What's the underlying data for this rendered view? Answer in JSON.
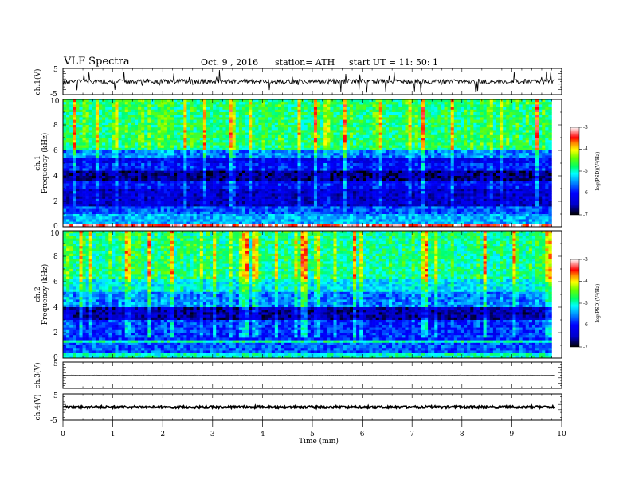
{
  "header": {
    "title": "VLF  Spectra",
    "date": "Oct. 9  , 2016",
    "station": "station= ATH",
    "start": "start  UT  =   11: 50: 1"
  },
  "chart_data": [
    {
      "type": "line",
      "name": "ch1-waveform",
      "ylabel": "ch.1(V)",
      "ylim": [
        -5,
        5
      ],
      "yticks": [
        "5",
        "-5"
      ],
      "xlim": [
        0,
        10
      ]
    },
    {
      "type": "heatmap",
      "name": "ch1-spectrogram",
      "ylabel": "ch.1\nFrequency (kHz)",
      "ylabel_channel": "ch.1",
      "ylabel_freq": "Frequency  (kHz)",
      "ylim": [
        0,
        10
      ],
      "yticks": [
        "0",
        "2",
        "4",
        "6",
        "8",
        "10"
      ],
      "xlim": [
        0,
        9.8
      ],
      "colorbar": {
        "label": "log(PSD)(V²/Hz)",
        "range": [
          -7,
          -3
        ],
        "ticks": [
          "-3",
          "-4",
          "-5",
          "-6",
          "-7"
        ]
      },
      "band_levels": [
        {
          "f": [
            0.0,
            0.3
          ],
          "level": -3.3
        },
        {
          "f": [
            0.3,
            1.0
          ],
          "level": -5.4
        },
        {
          "f": [
            1.0,
            1.6
          ],
          "level": -5.7
        },
        {
          "f": [
            1.6,
            3.0
          ],
          "level": -6.4
        },
        {
          "f": [
            3.0,
            3.6
          ],
          "level": -6.1
        },
        {
          "f": [
            3.6,
            4.4
          ],
          "level": -6.7
        },
        {
          "f": [
            4.4,
            5.0
          ],
          "level": -6.0
        },
        {
          "f": [
            5.0,
            5.4
          ],
          "level": -6.2
        },
        {
          "f": [
            5.4,
            6.0
          ],
          "level": -5.6
        },
        {
          "f": [
            6.0,
            6.3
          ],
          "level": -4.9
        },
        {
          "f": [
            6.3,
            10.0
          ],
          "level": -4.8
        }
      ]
    },
    {
      "type": "heatmap",
      "name": "ch2-spectrogram",
      "ylabel_channel": "ch.2",
      "ylabel_freq": "Frequency  (kHz)",
      "ylim": [
        0,
        10
      ],
      "yticks": [
        "0",
        "2",
        "4",
        "6",
        "8",
        "10"
      ],
      "xlim": [
        0,
        9.8
      ],
      "colorbar": {
        "label": "log(PSD)(V²/Hz)",
        "range": [
          -7,
          -3
        ],
        "ticks": [
          "-3",
          "-4",
          "-5",
          "-6",
          "-7"
        ]
      },
      "band_levels": [
        {
          "f": [
            0.0,
            0.4
          ],
          "level": -5.0
        },
        {
          "f": [
            0.4,
            1.2
          ],
          "level": -5.7
        },
        {
          "f": [
            1.2,
            1.5
          ],
          "level": -4.9
        },
        {
          "f": [
            1.5,
            3.0
          ],
          "level": -5.9
        },
        {
          "f": [
            3.0,
            4.0
          ],
          "level": -6.6
        },
        {
          "f": [
            4.0,
            5.2
          ],
          "level": -5.6
        },
        {
          "f": [
            5.2,
            6.2
          ],
          "level": -5.2
        },
        {
          "f": [
            6.2,
            10.0
          ],
          "level": -4.9
        }
      ]
    },
    {
      "type": "line",
      "name": "ch3-waveform",
      "ylabel": "ch.3(V)",
      "ylim": [
        -5,
        5
      ],
      "yticks": [
        "5"
      ],
      "xlim": [
        0,
        10
      ]
    },
    {
      "type": "line",
      "name": "ch4-waveform",
      "ylabel": "ch.4(V)",
      "ylim": [
        -5,
        5
      ],
      "yticks": [
        "5",
        "-5"
      ],
      "xlim": [
        0,
        10
      ],
      "xlabel": "Time  (min)",
      "xticks": [
        "0",
        "1",
        "2",
        "3",
        "4",
        "5",
        "6",
        "7",
        "8",
        "9",
        "10"
      ]
    }
  ],
  "colors": {
    "scale": [
      "#000000",
      "#0000cc",
      "#0000ff",
      "#0088ff",
      "#00ffff",
      "#00ff88",
      "#44ff00",
      "#ffff00",
      "#ff8800",
      "#ff0000",
      "#ffffff"
    ]
  }
}
